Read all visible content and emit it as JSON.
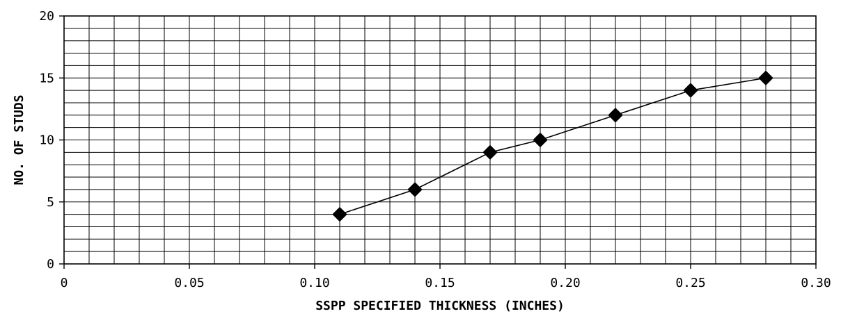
{
  "chart_data": {
    "type": "line",
    "title": "",
    "xlabel": "SSPP SPECIFIED THICKNESS (INCHES)",
    "ylabel": "NO. OF STUDS",
    "xlim": [
      0,
      0.3
    ],
    "ylim": [
      0,
      20
    ],
    "x_ticks": [
      0,
      0.05,
      0.1,
      0.15,
      0.2,
      0.25,
      0.3
    ],
    "x_tick_labels": [
      "0",
      "0.05",
      "0.10",
      "0.15",
      "0.20",
      "0.25",
      "0.30"
    ],
    "y_ticks": [
      0,
      5,
      10,
      15,
      20
    ],
    "y_tick_labels": [
      "0",
      "5",
      "10",
      "15",
      "20"
    ],
    "x_minor_step": 0.01,
    "y_minor_step": 1,
    "grid": true,
    "legend": "none",
    "marker": "diamond",
    "series": [
      {
        "x": [
          0.11,
          0.14,
          0.17,
          0.19,
          0.22,
          0.25,
          0.28
        ],
        "values": [
          4,
          6,
          9,
          10,
          12,
          14,
          15
        ]
      }
    ]
  }
}
